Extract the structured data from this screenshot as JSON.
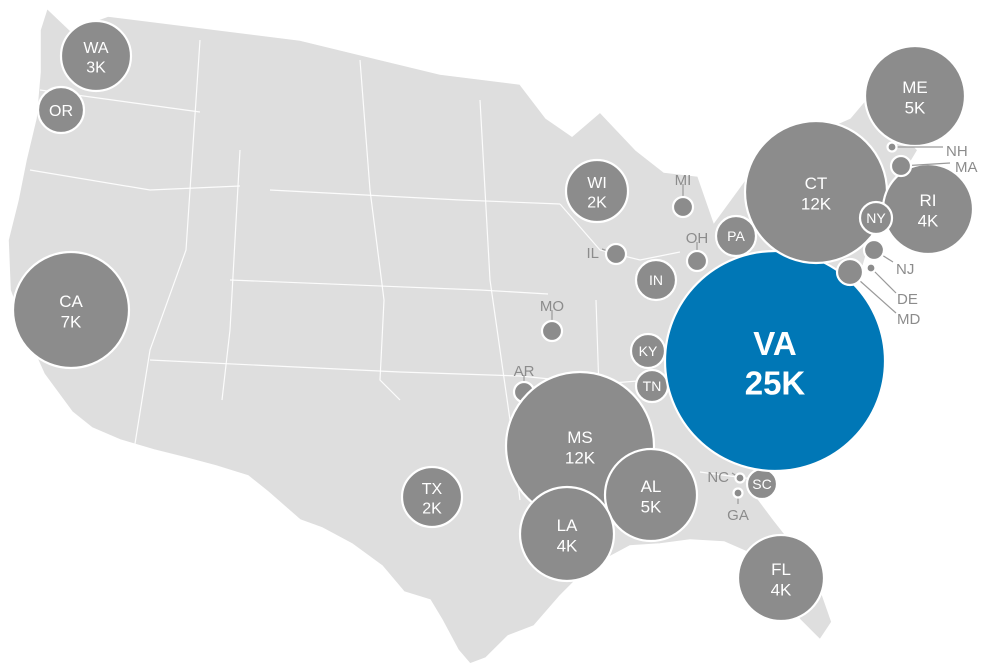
{
  "map": {
    "colors": {
      "land": "#dedede",
      "bubble": "#8c8c8c",
      "highlight": "#0077b6",
      "outside_label": "#8c8c8c"
    },
    "states": [
      {
        "code": "WA",
        "value_label": "3K",
        "value": 3000
      },
      {
        "code": "OR",
        "value_label": "",
        "value": null
      },
      {
        "code": "CA",
        "value_label": "7K",
        "value": 7000
      },
      {
        "code": "TX",
        "value_label": "2K",
        "value": 2000
      },
      {
        "code": "WI",
        "value_label": "2K",
        "value": 2000
      },
      {
        "code": "MI",
        "value_label": "",
        "value": null
      },
      {
        "code": "IL",
        "value_label": "",
        "value": null
      },
      {
        "code": "IN",
        "value_label": "",
        "value": null
      },
      {
        "code": "OH",
        "value_label": "",
        "value": null
      },
      {
        "code": "PA",
        "value_label": "",
        "value": null
      },
      {
        "code": "MO",
        "value_label": "",
        "value": null
      },
      {
        "code": "KY",
        "value_label": "",
        "value": null
      },
      {
        "code": "TN",
        "value_label": "",
        "value": null
      },
      {
        "code": "AR",
        "value_label": "",
        "value": null
      },
      {
        "code": "MS",
        "value_label": "12K",
        "value": 12000
      },
      {
        "code": "AL",
        "value_label": "5K",
        "value": 5000
      },
      {
        "code": "LA",
        "value_label": "4K",
        "value": 4000
      },
      {
        "code": "NC",
        "value_label": "",
        "value": null
      },
      {
        "code": "SC",
        "value_label": "",
        "value": null
      },
      {
        "code": "GA",
        "value_label": "",
        "value": null
      },
      {
        "code": "FL",
        "value_label": "4K",
        "value": 4000
      },
      {
        "code": "VA",
        "value_label": "25K",
        "value": 25000,
        "highlight": true
      },
      {
        "code": "CT",
        "value_label": "12K",
        "value": 12000
      },
      {
        "code": "ME",
        "value_label": "5K",
        "value": 5000
      },
      {
        "code": "RI",
        "value_label": "4K",
        "value": 4000
      },
      {
        "code": "NY",
        "value_label": "",
        "value": null
      },
      {
        "code": "NH",
        "value_label": "",
        "value": null
      },
      {
        "code": "MA",
        "value_label": "",
        "value": null
      },
      {
        "code": "NJ",
        "value_label": "",
        "value": null
      },
      {
        "code": "DE",
        "value_label": "",
        "value": null
      },
      {
        "code": "MD",
        "value_label": "",
        "value": null
      }
    ]
  }
}
